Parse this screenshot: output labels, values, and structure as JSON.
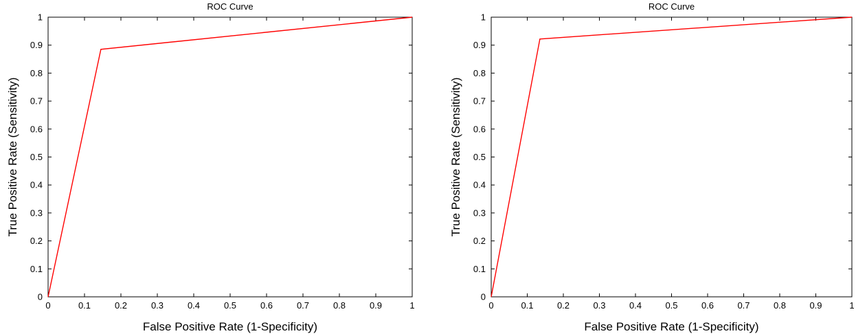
{
  "chart_data": [
    {
      "type": "line",
      "title": "ROC Curve",
      "xlabel": "False Positive Rate (1-Specificity)",
      "ylabel": "True Positive Rate (Sensitivity)",
      "xlim": [
        0,
        1
      ],
      "ylim": [
        0,
        1
      ],
      "xticks": [
        "0",
        "0.1",
        "0.2",
        "0.3",
        "0.4",
        "0.5",
        "0.6",
        "0.7",
        "0.8",
        "0.9",
        "1"
      ],
      "yticks": [
        "0",
        "0.1",
        "0.2",
        "0.3",
        "0.4",
        "0.5",
        "0.6",
        "0.7",
        "0.8",
        "0.9",
        "1"
      ],
      "grid": false,
      "series": [
        {
          "color": "#ff0000",
          "x": [
            0,
            0.145,
            1
          ],
          "y": [
            0,
            0.885,
            1
          ]
        }
      ]
    },
    {
      "type": "line",
      "title": "ROC Curve",
      "xlabel": "False Positive Rate (1-Specificity)",
      "ylabel": "True Positive Rate (Sensitivity)",
      "xlim": [
        0,
        1
      ],
      "ylim": [
        0,
        1
      ],
      "xticks": [
        "0",
        "0.1",
        "0.2",
        "0.3",
        "0.4",
        "0.5",
        "0.6",
        "0.7",
        "0.8",
        "0.9",
        "1"
      ],
      "yticks": [
        "0",
        "0.1",
        "0.2",
        "0.3",
        "0.4",
        "0.5",
        "0.6",
        "0.7",
        "0.8",
        "0.9",
        "1"
      ],
      "grid": false,
      "series": [
        {
          "color": "#ff0000",
          "x": [
            0,
            0.135,
            1
          ],
          "y": [
            0,
            0.922,
            1
          ]
        }
      ]
    }
  ]
}
